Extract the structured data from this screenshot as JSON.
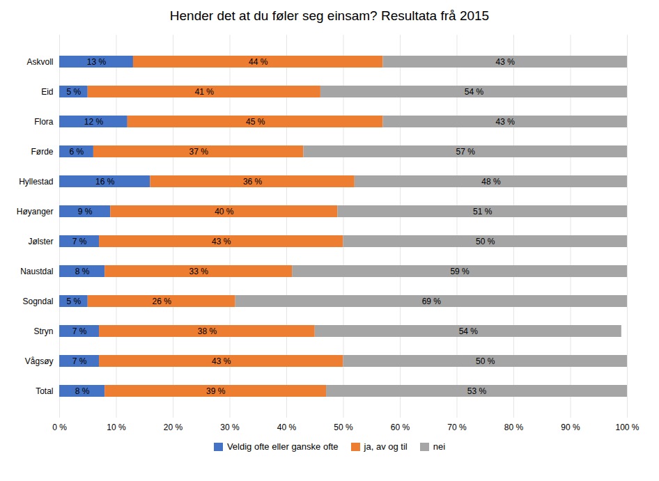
{
  "chart_data": {
    "type": "bar",
    "orientation": "horizontal",
    "stacked": true,
    "title": "Hender det at du føler seg einsam? Resultata frå 2015",
    "categories": [
      "Askvoll",
      "Eid",
      "Flora",
      "Førde",
      "Hyllestad",
      "Høyanger",
      "Jølster",
      "Naustdal",
      "Sogndal",
      "Stryn",
      "Vågsøy",
      "Total"
    ],
    "series": [
      {
        "name": "Veldig ofte eller ganske ofte",
        "color": "#4472C4",
        "values": [
          13,
          5,
          12,
          6,
          16,
          9,
          7,
          8,
          5,
          7,
          7,
          8
        ],
        "value_labels": [
          "13 %",
          "5 %",
          "12 %",
          "6 %",
          "16 %",
          "9 %",
          "7 %",
          "8 %",
          "5 %",
          "7 %",
          "7 %",
          "8 %"
        ]
      },
      {
        "name": "ja, av og til",
        "color": "#ED7D31",
        "values": [
          44,
          41,
          45,
          37,
          36,
          40,
          43,
          33,
          26,
          38,
          43,
          39
        ],
        "value_labels": [
          "44 %",
          "41 %",
          "45 %",
          "37 %",
          "36 %",
          "40 %",
          "43 %",
          "33 %",
          "26 %",
          "38 %",
          "43 %",
          "39 %"
        ]
      },
      {
        "name": "nei",
        "color": "#A5A5A5",
        "values": [
          43,
          54,
          43,
          57,
          48,
          51,
          50,
          59,
          69,
          54,
          50,
          53
        ],
        "value_labels": [
          "43 %",
          "54 %",
          "43 %",
          "57 %",
          "48 %",
          "51 %",
          "50 %",
          "59 %",
          "69 %",
          "54 %",
          "50 %",
          "53 %"
        ]
      }
    ],
    "xlim": [
      0,
      100
    ],
    "xticks": [
      {
        "value": 0,
        "label": "0 %"
      },
      {
        "value": 10,
        "label": "10 %"
      },
      {
        "value": 20,
        "label": "20 %"
      },
      {
        "value": 30,
        "label": "30 %"
      },
      {
        "value": 40,
        "label": "40 %"
      },
      {
        "value": 50,
        "label": "50 %"
      },
      {
        "value": 60,
        "label": "60 %"
      },
      {
        "value": 70,
        "label": "70 %"
      },
      {
        "value": 80,
        "label": "80 %"
      },
      {
        "value": 90,
        "label": "90 %"
      },
      {
        "value": 100,
        "label": "100 %"
      }
    ],
    "grid": true,
    "data_labels": true,
    "legend": "bottom"
  }
}
